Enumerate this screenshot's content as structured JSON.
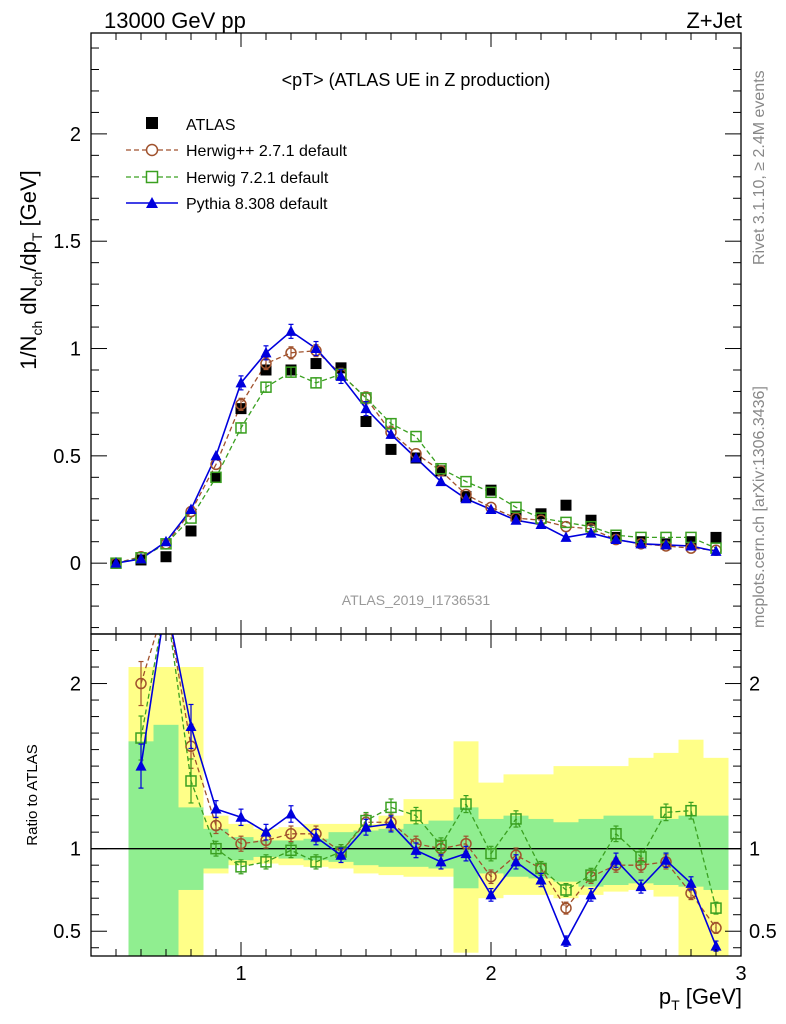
{
  "header": {
    "left": "13000 GeV pp",
    "right": "Z+Jet"
  },
  "side_labels": {
    "rivet": "Rivet 3.1.10, ≥ 2.4M events",
    "site": "mcplots.cern.ch [arXiv:1306.3436]"
  },
  "analysis_id": "ATLAS_2019_I1736531",
  "colors": {
    "atlas": "#000000",
    "herwigpp": "#a0522d",
    "herwig7": "#3aa020",
    "pythia": "#0000dd",
    "band_inner": "#90ee90",
    "band_outer": "#ffff88"
  },
  "chart_data": [
    {
      "type": "scatter",
      "title": "<pT> (ATLAS UE in Z production)",
      "ylabel_parts": {
        "a": "1/N",
        "b": "ch",
        "c": " dN",
        "d": "ch",
        "e": "/dp",
        "f": "T",
        "g": " [GeV]"
      },
      "xlim": [
        0.4,
        3.0
      ],
      "ylim": [
        -0.33,
        2.47
      ],
      "yticks": [
        0,
        0.5,
        1,
        1.5,
        2
      ],
      "ytick_labels": [
        "0",
        "0.5",
        "1",
        "1.5",
        "2"
      ],
      "legend": {
        "placement": "top-left",
        "entries": [
          "ATLAS",
          "Herwig++ 2.7.1 default",
          "Herwig 7.2.1 default",
          "Pythia 8.308 default"
        ]
      },
      "x": [
        0.5,
        0.6,
        0.7,
        0.8,
        0.9,
        1.0,
        1.1,
        1.2,
        1.3,
        1.4,
        1.5,
        1.6,
        1.7,
        1.8,
        1.9,
        2.0,
        2.1,
        2.2,
        2.3,
        2.4,
        2.5,
        2.6,
        2.7,
        2.8,
        2.9
      ],
      "series": [
        {
          "name": "ATLAS",
          "values": [
            0.0,
            0.015,
            0.03,
            0.15,
            0.4,
            0.72,
            0.9,
            0.9,
            0.93,
            0.91,
            0.66,
            0.53,
            0.49,
            0.43,
            0.31,
            0.34,
            0.22,
            0.23,
            0.27,
            0.2,
            0.12,
            0.1,
            0.09,
            0.1,
            0.12
          ]
        },
        {
          "name": "Herwig++ 2.7.1 default",
          "values": [
            0.0,
            0.03,
            0.09,
            0.24,
            0.46,
            0.74,
            0.93,
            0.98,
            0.99,
            0.88,
            0.77,
            0.61,
            0.51,
            0.43,
            0.32,
            0.26,
            0.21,
            0.2,
            0.17,
            0.16,
            0.11,
            0.09,
            0.08,
            0.07,
            0.06
          ]
        },
        {
          "name": "Herwig 7.2.1 default",
          "values": [
            0.0,
            0.025,
            0.09,
            0.21,
            0.4,
            0.63,
            0.82,
            0.89,
            0.84,
            0.88,
            0.77,
            0.65,
            0.59,
            0.44,
            0.38,
            0.33,
            0.26,
            0.21,
            0.19,
            0.17,
            0.13,
            0.12,
            0.12,
            0.12,
            0.07
          ]
        },
        {
          "name": "Pythia 8.308 default",
          "values": [
            0.0,
            0.02,
            0.1,
            0.25,
            0.5,
            0.84,
            0.98,
            1.08,
            1.0,
            0.87,
            0.72,
            0.6,
            0.49,
            0.38,
            0.3,
            0.25,
            0.2,
            0.18,
            0.12,
            0.14,
            0.11,
            0.09,
            0.085,
            0.08,
            0.055
          ]
        }
      ]
    },
    {
      "type": "line",
      "ylabel": "Ratio to ATLAS",
      "xlabel_parts": {
        "a": "p",
        "b": "T",
        "c": " [GeV]"
      },
      "xlim": [
        0.4,
        3.0
      ],
      "ylim": [
        0.35,
        2.3
      ],
      "xticks": [
        1,
        2,
        3
      ],
      "xtick_labels": [
        "1",
        "2",
        "3"
      ],
      "yticks": [
        0.5,
        1,
        2
      ],
      "ytick_labels": [
        "0.5",
        "1",
        "2"
      ],
      "band_edges": [
        0.55,
        0.65,
        0.75,
        0.85,
        0.95,
        1.05,
        1.15,
        1.25,
        1.35,
        1.45,
        1.55,
        1.65,
        1.75,
        1.85,
        1.95,
        2.05,
        2.15,
        2.25,
        2.35,
        2.45,
        2.55,
        2.65,
        2.75,
        2.85,
        2.95
      ],
      "band_inner": [
        [
          0.3,
          1.65
        ],
        [
          0.3,
          1.75
        ],
        [
          0.75,
          1.25
        ],
        [
          0.88,
          1.12
        ],
        [
          0.93,
          1.07
        ],
        [
          0.95,
          1.05
        ],
        [
          0.94,
          1.05
        ],
        [
          0.93,
          1.06
        ],
        [
          0.92,
          1.1
        ],
        [
          0.9,
          1.11
        ],
        [
          0.89,
          1.12
        ],
        [
          0.89,
          1.15
        ],
        [
          0.88,
          1.17
        ],
        [
          0.76,
          1.25
        ],
        [
          0.85,
          1.18
        ],
        [
          0.83,
          1.2
        ],
        [
          0.82,
          1.18
        ],
        [
          0.8,
          1.16
        ],
        [
          0.77,
          1.18
        ],
        [
          0.78,
          1.2
        ],
        [
          0.79,
          1.2
        ],
        [
          0.78,
          1.18
        ],
        [
          0.77,
          1.2
        ],
        [
          0.75,
          1.2
        ]
      ],
      "band_outer": [
        [
          0.3,
          2.1
        ],
        [
          0.3,
          2.1
        ],
        [
          0.3,
          2.1
        ],
        [
          0.85,
          1.2
        ],
        [
          0.9,
          1.15
        ],
        [
          0.91,
          1.12
        ],
        [
          0.9,
          1.13
        ],
        [
          0.89,
          1.15
        ],
        [
          0.88,
          1.15
        ],
        [
          0.85,
          1.15
        ],
        [
          0.84,
          1.2
        ],
        [
          0.83,
          1.3
        ],
        [
          0.83,
          1.3
        ],
        [
          0.37,
          1.65
        ],
        [
          0.7,
          1.4
        ],
        [
          0.72,
          1.45
        ],
        [
          0.72,
          1.45
        ],
        [
          0.7,
          1.5
        ],
        [
          0.72,
          1.5
        ],
        [
          0.74,
          1.5
        ],
        [
          0.75,
          1.55
        ],
        [
          0.71,
          1.58
        ],
        [
          0.3,
          1.66
        ],
        [
          0.3,
          1.55
        ]
      ],
      "series": [
        {
          "name": "Herwig++ 2.7.1 default",
          "values": [
            2.0,
            2.5,
            1.62,
            1.14,
            1.03,
            1.05,
            1.09,
            1.09,
            0.98,
            1.16,
            1.16,
            1.03,
            1.0,
            1.03,
            0.83,
            0.96,
            0.88,
            0.64,
            0.83,
            0.9,
            0.9,
            0.92,
            0.73,
            0.52
          ]
        },
        {
          "name": "Herwig 7.2.1 default",
          "values": [
            1.67,
            2.5,
            1.41,
            1.0,
            0.89,
            0.92,
            0.99,
            0.92,
            0.98,
            1.17,
            1.25,
            1.2,
            1.02,
            1.27,
            0.97,
            1.18,
            0.88,
            0.75,
            0.84,
            1.09,
            0.95,
            1.22,
            1.23,
            0.64
          ]
        },
        {
          "name": "Pythia 8.308 default",
          "values": [
            1.5,
            2.5,
            1.74,
            1.24,
            1.19,
            1.1,
            1.21,
            1.07,
            0.96,
            1.13,
            1.15,
            0.99,
            0.92,
            0.97,
            0.72,
            0.92,
            0.81,
            0.44,
            0.72,
            0.93,
            0.77,
            0.93,
            0.79,
            0.41
          ]
        }
      ]
    }
  ]
}
